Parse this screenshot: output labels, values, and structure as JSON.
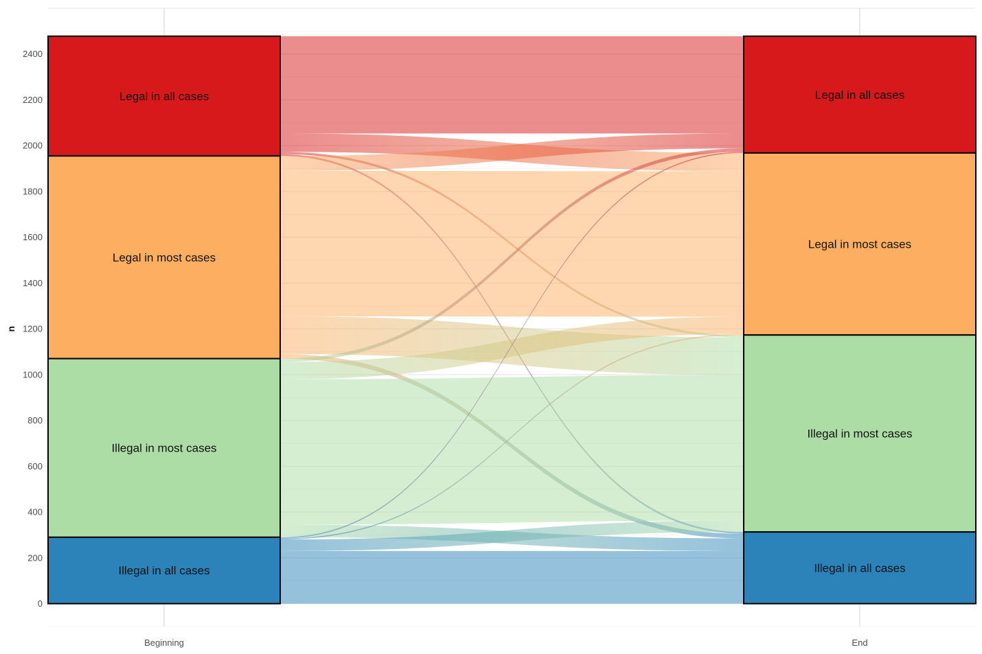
{
  "chart_data": {
    "type": "alluvial",
    "ylabel": "n",
    "xlabel": "",
    "ylim": [
      -100,
      2600
    ],
    "yticks": [
      0,
      200,
      400,
      600,
      800,
      1000,
      1200,
      1400,
      1600,
      1800,
      2000,
      2200,
      2400
    ],
    "grid": true,
    "axes": [
      "Beginning",
      "End"
    ],
    "strata": [
      {
        "label": "Legal in all cases",
        "color": "#d7191c"
      },
      {
        "label": "Legal in most cases",
        "color": "#fdae61"
      },
      {
        "label": "Illegal in most cases",
        "color": "#abdda4"
      },
      {
        "label": "Illegal in all cases",
        "color": "#2b83ba"
      }
    ],
    "flows": [
      {
        "from": "Legal in all cases",
        "to": "Legal in all cases",
        "value": 425
      },
      {
        "from": "Legal in all cases",
        "to": "Legal in most cases",
        "value": 80
      },
      {
        "from": "Legal in all cases",
        "to": "Illegal in most cases",
        "value": 10
      },
      {
        "from": "Legal in all cases",
        "to": "Illegal in all cases",
        "value": 8
      },
      {
        "from": "Legal in most cases",
        "to": "Legal in all cases",
        "value": 65
      },
      {
        "from": "Legal in most cases",
        "to": "Legal in most cases",
        "value": 635
      },
      {
        "from": "Legal in most cases",
        "to": "Illegal in most cases",
        "value": 165
      },
      {
        "from": "Legal in most cases",
        "to": "Illegal in all cases",
        "value": 20
      },
      {
        "from": "Illegal in most cases",
        "to": "Legal in all cases",
        "value": 15
      },
      {
        "from": "Illegal in most cases",
        "to": "Legal in most cases",
        "value": 75
      },
      {
        "from": "Illegal in most cases",
        "to": "Illegal in most cases",
        "value": 635
      },
      {
        "from": "Illegal in most cases",
        "to": "Illegal in all cases",
        "value": 55
      },
      {
        "from": "Illegal in all cases",
        "to": "Legal in all cases",
        "value": 5
      },
      {
        "from": "Illegal in all cases",
        "to": "Legal in most cases",
        "value": 5
      },
      {
        "from": "Illegal in all cases",
        "to": "Illegal in most cases",
        "value": 50
      },
      {
        "from": "Illegal in all cases",
        "to": "Illegal in all cases",
        "value": 230
      }
    ]
  }
}
